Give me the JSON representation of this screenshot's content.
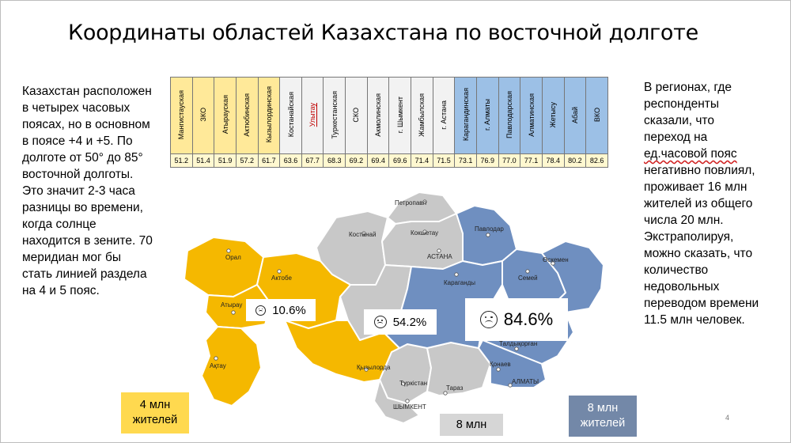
{
  "slide": {
    "title": "Координаты областей Казахстана по восточной долготе",
    "left_text": "Казахстан расположен в четырех часовых поясах, но в основном в поясе +4 и +5. По долготе от 50° до 85° восточной долготы. Это значит 2-3 часа разницы во времени, когда солнце находится в зените. 70 меридиан мог бы стать линией раздела на 4 и 5 пояс.",
    "right_text_before": "В регионах, где респонденты сказали, что переход на ",
    "right_text_underlined": "ед.часовой пояс",
    "right_text_after": " негативно повлиял, проживает 16 млн жителей из общего числа 20 млн. Экстраполируя, можно сказать, что количество недовольных переводом времени 11.5 млн человек.",
    "page_number": "4"
  },
  "table": {
    "regions": [
      {
        "name": "Мангистауская",
        "value": "51.2",
        "group": "y"
      },
      {
        "name": "ЗКО",
        "value": "51.4",
        "group": "y"
      },
      {
        "name": "Атырауская",
        "value": "51.9",
        "group": "y"
      },
      {
        "name": "Актюбинская",
        "value": "57.2",
        "group": "y"
      },
      {
        "name": "Кызылординская",
        "value": "61.7",
        "group": "y"
      },
      {
        "name": "Костанайская",
        "value": "63.6",
        "group": "g"
      },
      {
        "name": "Улытау",
        "value": "67.7",
        "group": "g",
        "red": true
      },
      {
        "name": "Туркестанская",
        "value": "68.3",
        "group": "g"
      },
      {
        "name": "СКО",
        "value": "69.2",
        "group": "g"
      },
      {
        "name": "Акмолинская",
        "value": "69.4",
        "group": "g"
      },
      {
        "name": "г. Шымкент",
        "value": "69.6",
        "group": "g"
      },
      {
        "name": "Жамбылская",
        "value": "71.4",
        "group": "g"
      },
      {
        "name": "г. Астана",
        "value": "71.5",
        "group": "g"
      },
      {
        "name": "Карагандинская",
        "value": "73.1",
        "group": "b"
      },
      {
        "name": "г. Алматы",
        "value": "76.9",
        "group": "b"
      },
      {
        "name": "Павлодарская",
        "value": "77.0",
        "group": "b"
      },
      {
        "name": "Алматинская",
        "value": "77.1",
        "group": "b"
      },
      {
        "name": "Жетысу",
        "value": "78.4",
        "group": "b"
      },
      {
        "name": "Абай",
        "value": "80.2",
        "group": "b"
      },
      {
        "name": "ВКО",
        "value": "82.6",
        "group": "b"
      }
    ]
  },
  "map": {
    "cities": {
      "petropavl": "Петропавл",
      "kostanai": "Костанай",
      "kokshetau": "Кокшетау",
      "pavlodar": "Павлодар",
      "uralsk": "Орал",
      "aktobe": "Актобе",
      "astana": "АСТАНА",
      "karaganda": "Караганды",
      "semey": "Семей",
      "oskemen": "Өскемен",
      "atyrau": "Атырау",
      "aktau": "Ақтау",
      "taldykorgan": "Талдықорған",
      "konaev": "Қонаев",
      "almaty": "АЛМАТЫ",
      "kyzylorda": "Қызылорда",
      "turkistan": "Түркістан",
      "taraz": "Тараз",
      "shymkent": "ШЫМКЕНТ"
    },
    "colors": {
      "west": "#f5b800",
      "center": "#c8c8c8",
      "east": "#6f8fc0"
    }
  },
  "stats": {
    "west": "10.6%",
    "center": "54.2%",
    "east": "84.6%"
  },
  "population": {
    "west_line1": "4 млн",
    "west_line2": "жителей",
    "center": "8 млн",
    "east_line1": "8 млн",
    "east_line2": "жителей"
  }
}
